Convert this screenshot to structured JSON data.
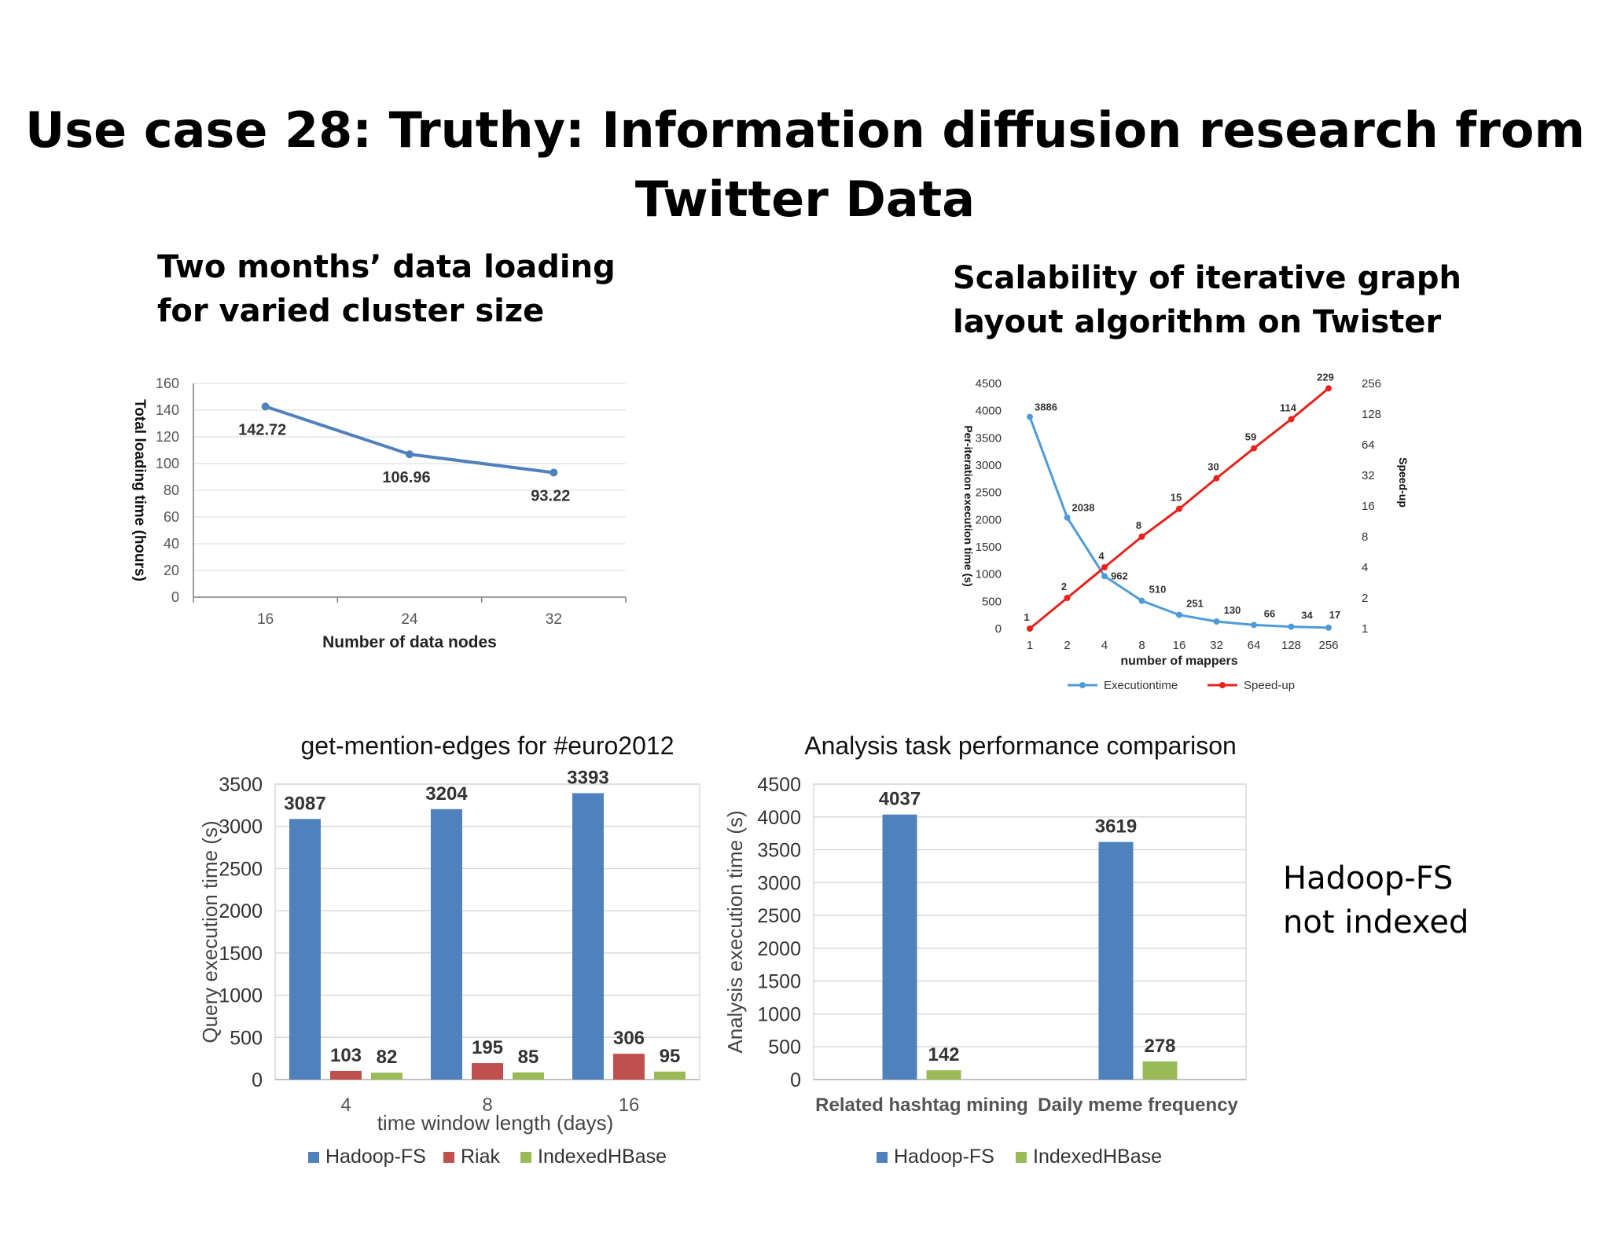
{
  "slide": {
    "title_line1": "Use case 28: Truthy: Information diffusion research from",
    "title_line2": "Twitter Data",
    "subtitle_left_line1": "Two months’ data loading",
    "subtitle_left_line2": "for varied cluster size",
    "subtitle_right_line1": "Scalability of iterative graph",
    "subtitle_right_line2": "layout algorithm on Twister",
    "note_line1": "Hadoop-FS",
    "note_line2": "not indexed"
  },
  "chart_data": [
    {
      "type": "line",
      "x": [
        16,
        24,
        32
      ],
      "categories": [
        "16",
        "24",
        "32"
      ],
      "series": [
        {
          "values": [
            142.72,
            106.96,
            93.22
          ],
          "labels": [
            "142.72",
            "106.96",
            "93.22"
          ],
          "color": "#4f81bd"
        }
      ],
      "xlabel": "Number of data nodes",
      "ylabel": "Total  loading  time (hours)",
      "ylim": [
        0,
        160
      ],
      "yticks": [
        0,
        20,
        40,
        60,
        80,
        100,
        120,
        140,
        160
      ],
      "grid": true
    },
    {
      "type": "line",
      "categories": [
        "1",
        "2",
        "4",
        "8",
        "16",
        "32",
        "64",
        "128",
        "256"
      ],
      "series": [
        {
          "name": "Executiontime",
          "axis": "left",
          "color": "#4f9bd8",
          "values": [
            3886,
            2038,
            962,
            510,
            251,
            130,
            66,
            34,
            17
          ],
          "labels": [
            "3886",
            "2038",
            "962",
            "510",
            "251",
            "130",
            "66",
            "34",
            "17"
          ]
        },
        {
          "name": "Speed-up",
          "axis": "right",
          "color": "#e8221c",
          "values": [
            1,
            2,
            4,
            8,
            15,
            30,
            59,
            114,
            229
          ],
          "labels": [
            "1",
            "2",
            "4",
            "8",
            "15",
            "30",
            "59",
            "114",
            "229"
          ]
        }
      ],
      "xlabel": "number of mappers",
      "ylabel": "Per-iteration execution time (s)",
      "y2label": "Speed-up",
      "ylim": [
        0,
        4500
      ],
      "yticks": [
        0,
        500,
        1000,
        1500,
        2000,
        2500,
        3000,
        3500,
        4000,
        4500
      ],
      "y2scale": "log2",
      "y2ticks": [
        "1",
        "2",
        "4",
        "8",
        "16",
        "32",
        "64",
        "128",
        "256"
      ],
      "legend": "bottom",
      "grid": false
    },
    {
      "type": "bar",
      "title": "get-mention-edges for #euro2012",
      "categories": [
        "4",
        "8",
        "16"
      ],
      "series": [
        {
          "name": "Hadoop-FS",
          "color": "#4f81bd",
          "values": [
            3087,
            3204,
            3393
          ]
        },
        {
          "name": "Riak",
          "color": "#c0504d",
          "values": [
            103,
            195,
            306
          ]
        },
        {
          "name": "IndexedHBase",
          "color": "#9bbb59",
          "values": [
            82,
            85,
            95
          ]
        }
      ],
      "xlabel": "time window length (days)",
      "ylabel": "Query execution time (s)",
      "ylim": [
        0,
        3500
      ],
      "yticks": [
        0,
        500,
        1000,
        1500,
        2000,
        2500,
        3000,
        3500
      ],
      "legend": "bottom",
      "grid": true
    },
    {
      "type": "bar",
      "title": "Analysis task performance comparison",
      "categories": [
        "Related hashtag mining",
        "Daily meme frequency"
      ],
      "series": [
        {
          "name": "Hadoop-FS",
          "color": "#4f81bd",
          "values": [
            4037,
            3619
          ]
        },
        {
          "name": "IndexedHBase",
          "color": "#9bbb59",
          "values": [
            142,
            278
          ]
        }
      ],
      "xlabel": "",
      "ylabel": "Analysis execution time (s)",
      "ylim": [
        0,
        4500
      ],
      "yticks": [
        0,
        500,
        1000,
        1500,
        2000,
        2500,
        3000,
        3500,
        4000,
        4500
      ],
      "legend": "bottom",
      "grid": true
    }
  ]
}
